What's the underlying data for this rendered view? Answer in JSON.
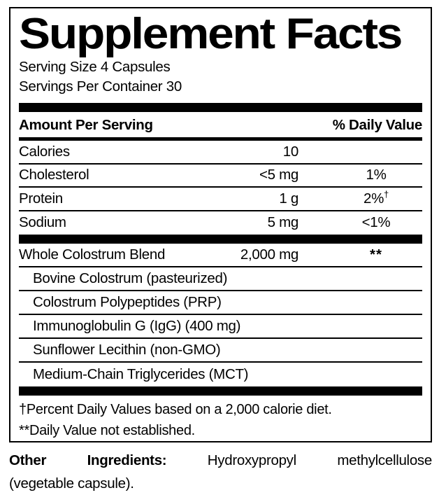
{
  "title": "Supplement Facts",
  "serving": {
    "size": "Serving Size 4 Capsules",
    "per_container": "Servings Per Container 30"
  },
  "header": {
    "amount_per_serving": "Amount Per Serving",
    "daily_value": "% Daily Value"
  },
  "rows": [
    {
      "name": "Calories",
      "amount": "10",
      "dv": ""
    },
    {
      "name": "Cholesterol",
      "amount": "<5 mg",
      "dv": "1%"
    },
    {
      "name": "Protein",
      "amount": "1 g",
      "dv": "2%",
      "dv_sup": "†"
    },
    {
      "name": "Sodium",
      "amount": "5 mg",
      "dv": "<1%"
    }
  ],
  "blend": {
    "name": "Whole Colostrum Blend",
    "amount": "2,000 mg",
    "dv": "**"
  },
  "sub_ingredients": [
    "Bovine Colostrum (pasteurized)",
    "Colostrum Polypeptides (PRP)",
    "Immunoglobulin G (IgG) (400 mg)",
    "Sunflower Lecithin (non-GMO)",
    "Medium-Chain Triglycerides (MCT)"
  ],
  "footnotes": [
    "†Percent Daily Values based on a 2,000 calorie diet.",
    "**Daily Value not established."
  ],
  "other_ingredients": {
    "label": "Other Ingredients:",
    "text": "Hydroxypropyl methylcellulose",
    "text2": "(vegetable capsule)."
  },
  "colors": {
    "ink": "#000000",
    "background": "#ffffff"
  }
}
